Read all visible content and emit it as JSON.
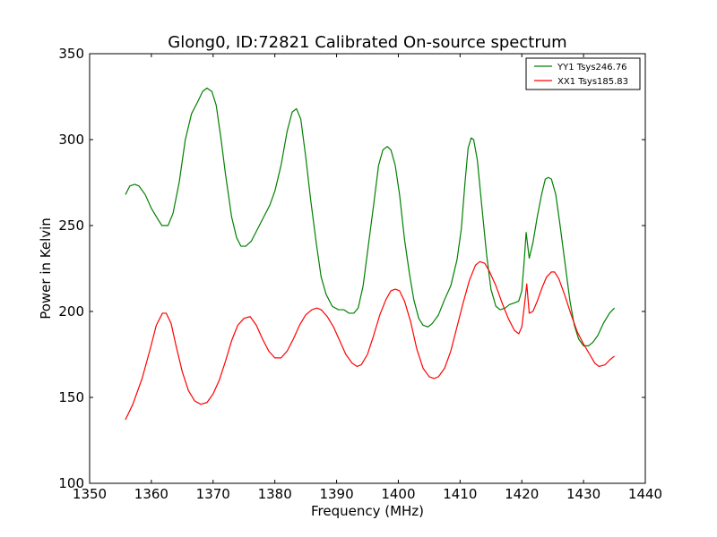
{
  "chart_data": {
    "type": "line",
    "title": "Glong0, ID:72821 Calibrated On-source spectrum",
    "xlabel": "Frequency (MHz)",
    "ylabel": "Power in Kelvin",
    "xlim": [
      1350,
      1440
    ],
    "ylim": [
      100,
      350
    ],
    "xticks": [
      1350,
      1360,
      1370,
      1380,
      1390,
      1400,
      1410,
      1420,
      1430,
      1440
    ],
    "yticks": [
      100,
      150,
      200,
      250,
      300,
      350
    ],
    "grid": false,
    "legend_position": "top-right",
    "series": [
      {
        "name": "YY1 Tsys246.76",
        "color": "#008000",
        "points": [
          [
            1355.8,
            268
          ],
          [
            1356.5,
            273
          ],
          [
            1357.3,
            274
          ],
          [
            1358.0,
            273
          ],
          [
            1359.0,
            268
          ],
          [
            1360.0,
            260
          ],
          [
            1361.0,
            254
          ],
          [
            1361.7,
            250
          ],
          [
            1362.7,
            250
          ],
          [
            1363.5,
            257
          ],
          [
            1364.5,
            275
          ],
          [
            1365.5,
            300
          ],
          [
            1366.5,
            315
          ],
          [
            1367.5,
            322
          ],
          [
            1368.3,
            328
          ],
          [
            1369.0,
            330
          ],
          [
            1369.8,
            328
          ],
          [
            1370.5,
            320
          ],
          [
            1371.3,
            300
          ],
          [
            1372.0,
            280
          ],
          [
            1373.0,
            255
          ],
          [
            1373.8,
            243
          ],
          [
            1374.5,
            238
          ],
          [
            1375.3,
            238
          ],
          [
            1376.2,
            241
          ],
          [
            1377.2,
            248
          ],
          [
            1378.2,
            255
          ],
          [
            1379.2,
            262
          ],
          [
            1380.0,
            270
          ],
          [
            1381.0,
            285
          ],
          [
            1382.0,
            305
          ],
          [
            1382.8,
            316
          ],
          [
            1383.5,
            318
          ],
          [
            1384.2,
            312
          ],
          [
            1385.0,
            290
          ],
          [
            1385.8,
            265
          ],
          [
            1386.7,
            240
          ],
          [
            1387.5,
            220
          ],
          [
            1388.3,
            210
          ],
          [
            1389.3,
            203
          ],
          [
            1390.3,
            201
          ],
          [
            1391.2,
            201
          ],
          [
            1392.0,
            199
          ],
          [
            1392.8,
            199
          ],
          [
            1393.5,
            202
          ],
          [
            1394.3,
            215
          ],
          [
            1395.2,
            240
          ],
          [
            1396.0,
            262
          ],
          [
            1396.8,
            285
          ],
          [
            1397.5,
            294
          ],
          [
            1398.2,
            296
          ],
          [
            1398.8,
            294
          ],
          [
            1399.5,
            285
          ],
          [
            1400.2,
            268
          ],
          [
            1401.0,
            242
          ],
          [
            1401.8,
            222
          ],
          [
            1402.5,
            207
          ],
          [
            1403.3,
            196
          ],
          [
            1404.0,
            192
          ],
          [
            1404.8,
            191
          ],
          [
            1405.5,
            193
          ],
          [
            1406.5,
            198
          ],
          [
            1407.5,
            207
          ],
          [
            1408.5,
            215
          ],
          [
            1409.5,
            230
          ],
          [
            1410.2,
            248
          ],
          [
            1410.8,
            275
          ],
          [
            1411.3,
            295
          ],
          [
            1411.8,
            301
          ],
          [
            1412.2,
            300
          ],
          [
            1412.8,
            288
          ],
          [
            1413.5,
            262
          ],
          [
            1414.3,
            233
          ],
          [
            1415.0,
            213
          ],
          [
            1415.8,
            203
          ],
          [
            1416.5,
            201
          ],
          [
            1417.3,
            202
          ],
          [
            1418.0,
            204
          ],
          [
            1418.8,
            205
          ],
          [
            1419.5,
            206
          ],
          [
            1420.0,
            212
          ],
          [
            1420.4,
            230
          ],
          [
            1420.7,
            246
          ],
          [
            1421.0,
            237
          ],
          [
            1421.2,
            231
          ],
          [
            1421.8,
            240
          ],
          [
            1422.5,
            255
          ],
          [
            1423.2,
            268
          ],
          [
            1423.8,
            277
          ],
          [
            1424.3,
            278
          ],
          [
            1424.8,
            277
          ],
          [
            1425.5,
            268
          ],
          [
            1426.2,
            250
          ],
          [
            1427.0,
            228
          ],
          [
            1427.8,
            206
          ],
          [
            1428.5,
            192
          ],
          [
            1429.2,
            184
          ],
          [
            1430.0,
            180
          ],
          [
            1430.8,
            180
          ],
          [
            1431.5,
            182
          ],
          [
            1432.3,
            186
          ],
          [
            1433.2,
            193
          ],
          [
            1434.2,
            199
          ],
          [
            1435.0,
            202
          ]
        ]
      },
      {
        "name": "XX1 Tsys185.83",
        "color": "#ff0000",
        "points": [
          [
            1355.8,
            137
          ],
          [
            1357.0,
            146
          ],
          [
            1358.5,
            161
          ],
          [
            1359.8,
            178
          ],
          [
            1360.8,
            192
          ],
          [
            1361.8,
            199
          ],
          [
            1362.4,
            199
          ],
          [
            1363.2,
            193
          ],
          [
            1364.0,
            180
          ],
          [
            1365.0,
            165
          ],
          [
            1366.0,
            154
          ],
          [
            1367.0,
            148
          ],
          [
            1368.0,
            146
          ],
          [
            1369.0,
            147
          ],
          [
            1370.0,
            152
          ],
          [
            1371.0,
            160
          ],
          [
            1372.0,
            171
          ],
          [
            1373.0,
            183
          ],
          [
            1374.0,
            192
          ],
          [
            1375.0,
            196
          ],
          [
            1376.0,
            197
          ],
          [
            1377.0,
            192
          ],
          [
            1378.0,
            184
          ],
          [
            1379.0,
            177
          ],
          [
            1380.0,
            173
          ],
          [
            1381.0,
            173
          ],
          [
            1382.0,
            177
          ],
          [
            1383.0,
            184
          ],
          [
            1384.0,
            192
          ],
          [
            1385.0,
            198
          ],
          [
            1386.0,
            201
          ],
          [
            1386.8,
            202
          ],
          [
            1387.5,
            201
          ],
          [
            1388.5,
            197
          ],
          [
            1389.5,
            191
          ],
          [
            1390.5,
            183
          ],
          [
            1391.5,
            175
          ],
          [
            1392.5,
            170
          ],
          [
            1393.3,
            168
          ],
          [
            1394.0,
            169
          ],
          [
            1395.0,
            175
          ],
          [
            1396.0,
            186
          ],
          [
            1397.0,
            198
          ],
          [
            1398.0,
            207
          ],
          [
            1398.8,
            212
          ],
          [
            1399.5,
            213
          ],
          [
            1400.2,
            212
          ],
          [
            1401.0,
            206
          ],
          [
            1402.0,
            194
          ],
          [
            1403.0,
            178
          ],
          [
            1404.0,
            167
          ],
          [
            1405.0,
            162
          ],
          [
            1405.8,
            161
          ],
          [
            1406.5,
            162
          ],
          [
            1407.5,
            167
          ],
          [
            1408.5,
            177
          ],
          [
            1409.5,
            191
          ],
          [
            1410.5,
            205
          ],
          [
            1411.5,
            218
          ],
          [
            1412.5,
            227
          ],
          [
            1413.2,
            229
          ],
          [
            1414.0,
            228
          ],
          [
            1414.8,
            223
          ],
          [
            1415.8,
            215
          ],
          [
            1416.8,
            205
          ],
          [
            1417.8,
            196
          ],
          [
            1418.8,
            189
          ],
          [
            1419.5,
            187
          ],
          [
            1420.0,
            191
          ],
          [
            1420.5,
            206
          ],
          [
            1420.8,
            216
          ],
          [
            1421.2,
            199
          ],
          [
            1421.8,
            200
          ],
          [
            1422.5,
            206
          ],
          [
            1423.3,
            214
          ],
          [
            1424.0,
            220
          ],
          [
            1424.8,
            223
          ],
          [
            1425.3,
            223
          ],
          [
            1426.0,
            219
          ],
          [
            1427.0,
            209
          ],
          [
            1428.0,
            198
          ],
          [
            1429.0,
            188
          ],
          [
            1430.0,
            181
          ],
          [
            1431.0,
            175
          ],
          [
            1431.8,
            170
          ],
          [
            1432.5,
            168
          ],
          [
            1433.5,
            169
          ],
          [
            1434.3,
            172
          ],
          [
            1435.0,
            174
          ]
        ]
      }
    ]
  }
}
